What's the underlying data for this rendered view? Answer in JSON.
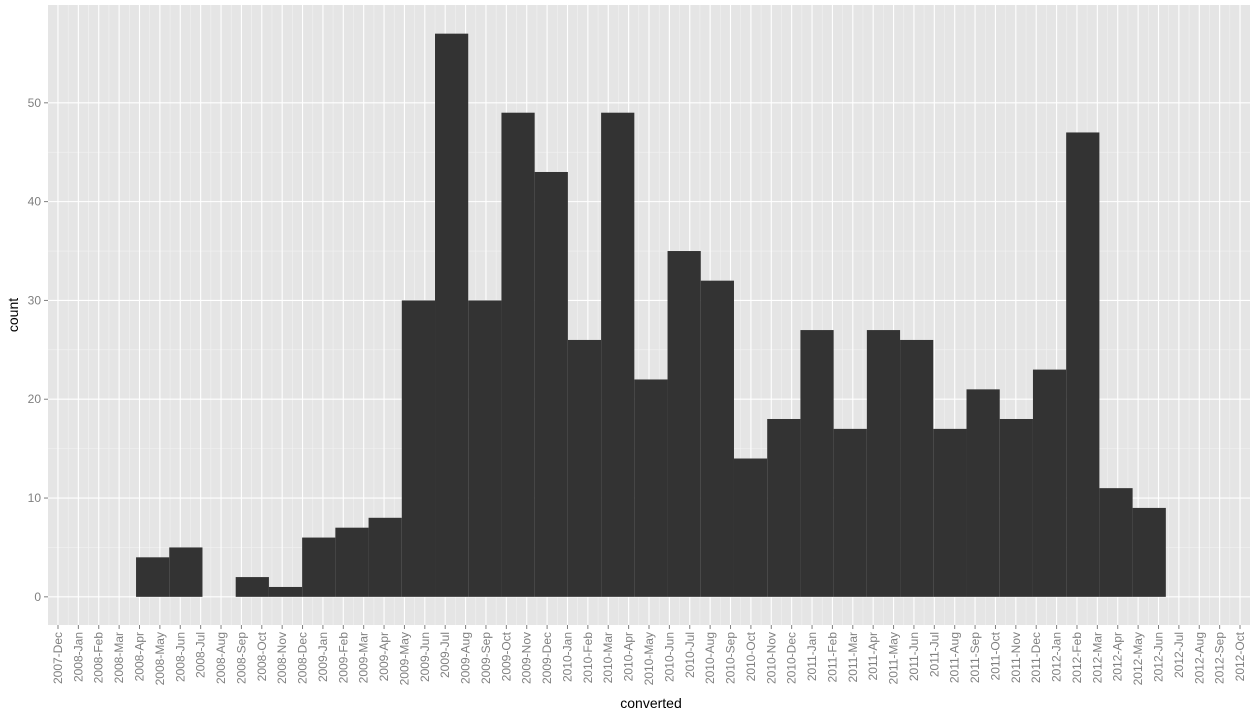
{
  "chart_data": {
    "type": "histogram",
    "x_label": "converted",
    "y_label": "count",
    "bins": [
      3.83,
      5.46,
      7.09,
      8.72,
      10.35,
      11.98,
      13.61,
      15.24,
      16.87,
      18.5,
      20.13,
      21.76,
      23.39,
      25.02,
      26.65,
      28.28,
      29.91,
      31.54,
      33.17,
      34.8,
      36.43,
      38.06,
      39.69,
      41.32,
      42.95,
      44.58,
      46.21,
      47.84,
      49.47,
      51.1,
      52.73,
      54.36
    ],
    "values": [
      4,
      5,
      0,
      2,
      1,
      6,
      7,
      8,
      30,
      57,
      30,
      49,
      43,
      26,
      49,
      22,
      35,
      32,
      14,
      18,
      27,
      17,
      27,
      26,
      17,
      21,
      18,
      23,
      47,
      11,
      9
    ],
    "color": "#333333",
    "xlim": [
      -0.49,
      58.49
    ],
    "xticks": [
      {
        "value": 0,
        "label": "2007-Dec"
      },
      {
        "value": 1,
        "label": "2008-Jan"
      },
      {
        "value": 2,
        "label": "2008-Feb"
      },
      {
        "value": 3,
        "label": "2008-Mar"
      },
      {
        "value": 4,
        "label": "2008-Apr"
      },
      {
        "value": 5,
        "label": "2008-May"
      },
      {
        "value": 6,
        "label": "2008-Jun"
      },
      {
        "value": 7,
        "label": "2008-Jul"
      },
      {
        "value": 8,
        "label": "2008-Aug"
      },
      {
        "value": 9,
        "label": "2008-Sep"
      },
      {
        "value": 10,
        "label": "2008-Oct"
      },
      {
        "value": 11,
        "label": "2008-Nov"
      },
      {
        "value": 12,
        "label": "2008-Dec"
      },
      {
        "value": 13,
        "label": "2009-Jan"
      },
      {
        "value": 14,
        "label": "2009-Feb"
      },
      {
        "value": 15,
        "label": "2009-Mar"
      },
      {
        "value": 16,
        "label": "2009-Apr"
      },
      {
        "value": 17,
        "label": "2009-May"
      },
      {
        "value": 18,
        "label": "2009-Jun"
      },
      {
        "value": 19,
        "label": "2009-Jul"
      },
      {
        "value": 20,
        "label": "2009-Aug"
      },
      {
        "value": 21,
        "label": "2009-Sep"
      },
      {
        "value": 22,
        "label": "2009-Oct"
      },
      {
        "value": 23,
        "label": "2009-Nov"
      },
      {
        "value": 24,
        "label": "2009-Dec"
      },
      {
        "value": 25,
        "label": "2010-Jan"
      },
      {
        "value": 26,
        "label": "2010-Feb"
      },
      {
        "value": 27,
        "label": "2010-Mar"
      },
      {
        "value": 28,
        "label": "2010-Apr"
      },
      {
        "value": 29,
        "label": "2010-May"
      },
      {
        "value": 30,
        "label": "2010-Jun"
      },
      {
        "value": 31,
        "label": "2010-Jul"
      },
      {
        "value": 32,
        "label": "2010-Aug"
      },
      {
        "value": 33,
        "label": "2010-Sep"
      },
      {
        "value": 34,
        "label": "2010-Oct"
      },
      {
        "value": 35,
        "label": "2010-Nov"
      },
      {
        "value": 36,
        "label": "2010-Dec"
      },
      {
        "value": 37,
        "label": "2011-Jan"
      },
      {
        "value": 38,
        "label": "2011-Feb"
      },
      {
        "value": 39,
        "label": "2011-Mar"
      },
      {
        "value": 40,
        "label": "2011-Apr"
      },
      {
        "value": 41,
        "label": "2011-May"
      },
      {
        "value": 42,
        "label": "2011-Jun"
      },
      {
        "value": 43,
        "label": "2011-Jul"
      },
      {
        "value": 44,
        "label": "2011-Aug"
      },
      {
        "value": 45,
        "label": "2011-Sep"
      },
      {
        "value": 46,
        "label": "2011-Oct"
      },
      {
        "value": 47,
        "label": "2011-Nov"
      },
      {
        "value": 48,
        "label": "2011-Dec"
      },
      {
        "value": 49,
        "label": "2012-Jan"
      },
      {
        "value": 50,
        "label": "2012-Feb"
      },
      {
        "value": 51,
        "label": "2012-Mar"
      },
      {
        "value": 52,
        "label": "2012-Apr"
      },
      {
        "value": 53,
        "label": "2012-May"
      },
      {
        "value": 54,
        "label": "2012-Jun"
      },
      {
        "value": 55,
        "label": "2012-Jul"
      },
      {
        "value": 56,
        "label": "2012-Aug"
      },
      {
        "value": 57,
        "label": "2012-Sep"
      },
      {
        "value": 58,
        "label": "2012-Oct"
      }
    ],
    "ylim": [
      -2.85,
      59.9
    ],
    "yticks": [
      0,
      10,
      20,
      30,
      40,
      50
    ],
    "grid": true
  }
}
